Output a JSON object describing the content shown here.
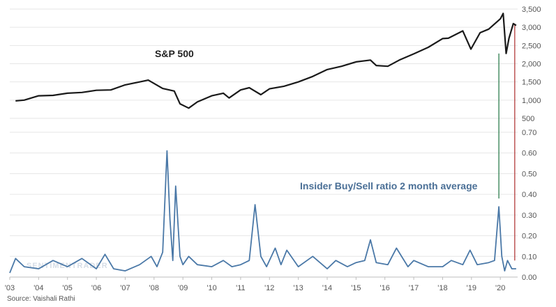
{
  "chart_data": {
    "type": "line",
    "title": "",
    "source_label": "Source: Vaishali Rathi",
    "watermark": "SENTIMENTRADER",
    "x_ticks": [
      "'03",
      "'04",
      "'05",
      "'06",
      "'07",
      "'08",
      "'09",
      "'10",
      "'11",
      "'12",
      "'13",
      "'14",
      "'15",
      "'16",
      "'17",
      "'18",
      "'19",
      "'20"
    ],
    "xlim": [
      2003.0,
      2020.6
    ],
    "upper_axis": {
      "ticks": [
        "3,500",
        "3,000",
        "2,500",
        "2,000",
        "1,500",
        "1,000",
        "500"
      ],
      "ylim": [
        500,
        3500
      ]
    },
    "lower_axis": {
      "ticks": [
        "0.70",
        "0.60",
        "0.50",
        "0.40",
        "0.30",
        "0.20",
        "0.10",
        "0.00"
      ],
      "ylim": [
        0.0,
        0.7
      ]
    },
    "grid": true,
    "series": [
      {
        "name": "S&P 500",
        "color": "#1a1a1a",
        "axis": "upper",
        "x": [
          2003.2,
          2003.5,
          2004.0,
          2004.5,
          2005.0,
          2005.5,
          2006.0,
          2006.5,
          2007.0,
          2007.5,
          2007.8,
          2008.3,
          2008.7,
          2008.9,
          2009.2,
          2009.5,
          2010.0,
          2010.4,
          2010.6,
          2011.0,
          2011.3,
          2011.7,
          2012.0,
          2012.5,
          2013.0,
          2013.5,
          2014.0,
          2014.5,
          2015.0,
          2015.5,
          2015.7,
          2016.1,
          2016.5,
          2017.0,
          2017.5,
          2018.0,
          2018.2,
          2018.7,
          2018.98,
          2019.3,
          2019.6,
          2020.0,
          2020.1,
          2020.2,
          2020.3,
          2020.45,
          2020.55
        ],
        "y": [
          980,
          1000,
          1120,
          1130,
          1190,
          1210,
          1270,
          1280,
          1420,
          1500,
          1550,
          1320,
          1250,
          900,
          780,
          950,
          1120,
          1190,
          1060,
          1280,
          1340,
          1150,
          1310,
          1380,
          1500,
          1650,
          1840,
          1930,
          2050,
          2100,
          1950,
          1930,
          2100,
          2270,
          2450,
          2690,
          2700,
          2900,
          2400,
          2850,
          2950,
          3230,
          3380,
          2280,
          2700,
          3100,
          3050
        ]
      },
      {
        "name": "Insider Buy/Sell ratio 2 month average",
        "color": "#4a78a7",
        "axis": "lower",
        "x": [
          2003.0,
          2003.2,
          2003.5,
          2004.0,
          2004.5,
          2005.0,
          2005.5,
          2006.0,
          2006.3,
          2006.6,
          2007.0,
          2007.5,
          2007.9,
          2008.1,
          2008.3,
          2008.45,
          2008.55,
          2008.65,
          2008.75,
          2008.9,
          2009.0,
          2009.2,
          2009.5,
          2010.0,
          2010.4,
          2010.7,
          2011.0,
          2011.3,
          2011.5,
          2011.7,
          2011.9,
          2012.2,
          2012.4,
          2012.6,
          2013.0,
          2013.5,
          2014.0,
          2014.3,
          2014.7,
          2015.0,
          2015.3,
          2015.5,
          2015.7,
          2016.1,
          2016.4,
          2016.8,
          2017.0,
          2017.5,
          2018.0,
          2018.3,
          2018.7,
          2018.95,
          2019.2,
          2019.6,
          2019.8,
          2019.95,
          2020.05,
          2020.15,
          2020.25,
          2020.4,
          2020.55
        ],
        "y": [
          0.02,
          0.09,
          0.05,
          0.04,
          0.08,
          0.05,
          0.09,
          0.04,
          0.11,
          0.04,
          0.03,
          0.06,
          0.1,
          0.05,
          0.12,
          0.61,
          0.28,
          0.08,
          0.44,
          0.1,
          0.06,
          0.1,
          0.06,
          0.05,
          0.08,
          0.05,
          0.06,
          0.08,
          0.35,
          0.1,
          0.05,
          0.14,
          0.06,
          0.13,
          0.05,
          0.1,
          0.04,
          0.08,
          0.05,
          0.07,
          0.08,
          0.18,
          0.07,
          0.06,
          0.14,
          0.05,
          0.08,
          0.05,
          0.05,
          0.08,
          0.06,
          0.13,
          0.06,
          0.07,
          0.08,
          0.34,
          0.1,
          0.03,
          0.08,
          0.04,
          0.04
        ]
      }
    ],
    "annotations": [
      {
        "text": "S&P 500"
      },
      {
        "text": "Insider Buy/Sell ratio 2 month average"
      }
    ],
    "markers": [
      {
        "name": "green-marker-line",
        "color": "#2e7d4f",
        "x": 2019.95,
        "axis_from": "lower",
        "y_from": 0.38,
        "axis_to": "upper",
        "y_to": 2280
      },
      {
        "name": "red-marker-line",
        "color": "#b23b3b",
        "x": 2020.5,
        "axis_from": "lower",
        "y_from": 0.08,
        "axis_to": "upper",
        "y_to": 3100
      }
    ]
  }
}
